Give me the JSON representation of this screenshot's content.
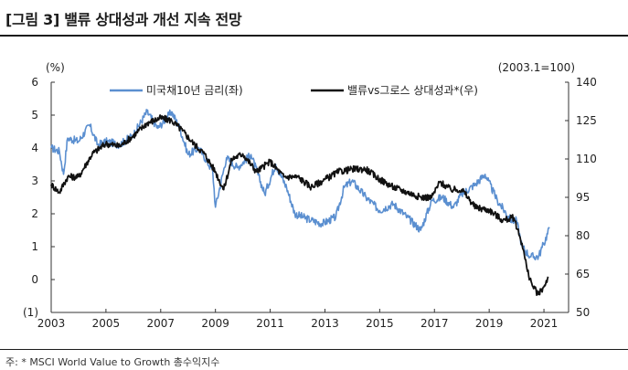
{
  "title": "[그림 3] 밸류 상대성과 개선 지속 전망",
  "footnote": "주: * MSCI World Value to Growth 총수익지수",
  "chart_data": {
    "type": "line",
    "left_axis": {
      "unit_label": "(%)",
      "ylim": [
        -1,
        6
      ],
      "tick_labels": [
        "(1)",
        "0",
        "1",
        "2",
        "3",
        "4",
        "5",
        "6"
      ],
      "tick_values": [
        -1,
        0,
        1,
        2,
        3,
        4,
        5,
        6
      ]
    },
    "right_axis": {
      "unit_label": "(2003.1=100)",
      "ylim": [
        50,
        140
      ],
      "tick_values": [
        50,
        65,
        80,
        95,
        110,
        125,
        140
      ]
    },
    "x_axis": {
      "xlim": [
        2003,
        2021.9
      ],
      "tick_values": [
        2003,
        2005,
        2007,
        2009,
        2011,
        2013,
        2015,
        2017,
        2019,
        2021
      ],
      "tick_labels": [
        "2003",
        "2005",
        "2007",
        "2009",
        "2011",
        "2013",
        "2015",
        "2017",
        "2019",
        "2021"
      ]
    },
    "grid": false,
    "legend_position": "top-center",
    "series": [
      {
        "name": "미국채10년 금리(좌)",
        "axis": "left",
        "color": "#5b8fd0",
        "x": [
          2003.0,
          2003.3,
          2003.45,
          2003.6,
          2004.0,
          2004.4,
          2004.7,
          2005.0,
          2005.5,
          2006.0,
          2006.5,
          2006.9,
          2007.4,
          2007.7,
          2008.0,
          2008.4,
          2008.9,
          2009.0,
          2009.4,
          2009.8,
          2010.3,
          2010.8,
          2011.2,
          2011.6,
          2011.9,
          2012.5,
          2012.9,
          2013.4,
          2013.7,
          2013.99,
          2014.5,
          2015.0,
          2015.5,
          2016.0,
          2016.5,
          2016.9,
          2017.3,
          2017.7,
          2018.0,
          2018.5,
          2018.85,
          2019.3,
          2019.8,
          2020.0,
          2020.2,
          2020.5,
          2020.8,
          2021.0,
          2021.2
        ],
        "values": [
          4.0,
          3.9,
          3.2,
          4.3,
          4.2,
          4.7,
          4.1,
          4.2,
          4.1,
          4.4,
          5.1,
          4.6,
          5.1,
          4.6,
          3.8,
          4.0,
          3.3,
          2.2,
          3.7,
          3.4,
          3.8,
          2.6,
          3.5,
          2.8,
          2.0,
          1.8,
          1.7,
          1.9,
          2.8,
          3.0,
          2.5,
          2.1,
          2.3,
          1.9,
          1.5,
          2.4,
          2.5,
          2.2,
          2.6,
          2.9,
          3.2,
          2.4,
          1.8,
          1.8,
          1.0,
          0.7,
          0.7,
          1.1,
          1.55
        ]
      },
      {
        "name": "밸류vs그로스 상대성과*(우)",
        "axis": "right",
        "color": "#111111",
        "x": [
          2003.0,
          2003.3,
          2003.6,
          2004.0,
          2004.5,
          2005.0,
          2005.5,
          2006.0,
          2006.5,
          2007.0,
          2007.4,
          2007.8,
          2008.2,
          2008.6,
          2009.0,
          2009.3,
          2009.6,
          2010.0,
          2010.5,
          2011.0,
          2011.5,
          2012.0,
          2012.5,
          2013.0,
          2013.5,
          2014.0,
          2014.5,
          2015.0,
          2015.5,
          2016.0,
          2016.5,
          2016.9,
          2017.2,
          2017.6,
          2018.0,
          2018.5,
          2019.0,
          2019.5,
          2019.9,
          2020.2,
          2020.4,
          2020.6,
          2020.8,
          2021.0,
          2021.15
        ],
        "values": [
          100,
          97,
          103,
          103,
          112,
          116,
          115,
          119,
          124,
          126,
          125,
          121,
          116,
          112,
          105,
          98,
          110,
          112,
          105,
          109,
          103,
          103,
          99,
          102,
          105,
          106,
          106,
          102,
          99,
          97,
          95,
          95,
          101,
          98,
          98,
          91,
          90,
          86,
          87,
          77,
          66,
          60,
          57,
          60,
          64
        ]
      }
    ]
  }
}
